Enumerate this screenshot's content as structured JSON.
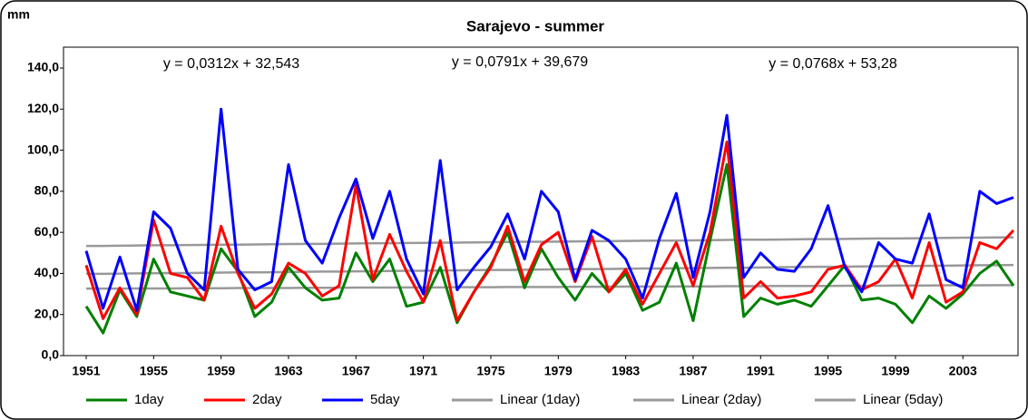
{
  "chart_data": {
    "type": "line",
    "title": "Sarajevo - summer",
    "y_label": "mm",
    "annotations": [
      "y = 0,0312x + 32,543",
      "y = 0,0791x + 39,679",
      "y = 0,0768x + 53,28"
    ],
    "categories": [
      "1951",
      null,
      null,
      null,
      "1955",
      null,
      null,
      null,
      "1959",
      null,
      null,
      null,
      "1963",
      null,
      null,
      null,
      "1967",
      null,
      null,
      null,
      "1971",
      null,
      null,
      null,
      "1975",
      null,
      null,
      null,
      "1979",
      null,
      null,
      null,
      "1983",
      null,
      null,
      null,
      "1987",
      null,
      null,
      null,
      "1991",
      null,
      null,
      null,
      "1995",
      null,
      null,
      null,
      "1999",
      null,
      null,
      null,
      "2003",
      null,
      null,
      null
    ],
    "ylim": [
      0,
      140
    ],
    "yticks": [
      {
        "value": 0,
        "label": "0,0"
      },
      {
        "value": 20,
        "label": "20,0"
      },
      {
        "value": 40,
        "label": "40,0"
      },
      {
        "value": 60,
        "label": "60,0"
      },
      {
        "value": 80,
        "label": "80,0"
      },
      {
        "value": 100,
        "label": "100,0"
      },
      {
        "value": 120,
        "label": "120,0"
      },
      {
        "value": 140,
        "label": "140,0"
      }
    ],
    "grid": false,
    "legend": "bottom",
    "series": [
      {
        "name": "1day",
        "color": "#008000",
        "values": [
          24,
          11,
          32,
          19,
          47,
          31,
          29,
          27,
          52,
          41,
          19,
          26,
          43,
          33,
          27,
          28,
          50,
          36,
          47,
          24,
          26,
          43,
          16,
          31,
          44,
          60,
          33,
          52,
          38,
          27,
          40,
          31,
          40,
          22,
          26,
          45,
          17,
          56,
          93,
          19,
          28,
          25,
          27,
          24,
          34,
          44,
          27,
          28,
          25,
          16,
          29,
          23,
          30,
          40,
          46,
          34
        ]
      },
      {
        "name": "2day",
        "color": "#ff0000",
        "values": [
          44,
          18,
          33,
          20,
          66,
          40,
          38,
          27,
          63,
          40,
          23,
          30,
          45,
          40,
          29,
          34,
          83,
          37,
          59,
          41,
          26,
          56,
          17,
          31,
          43,
          63,
          36,
          54,
          60,
          36,
          58,
          31,
          42,
          25,
          40,
          55,
          34,
          60,
          104,
          28,
          36,
          28,
          29,
          31,
          42,
          44,
          32,
          36,
          47,
          28,
          55,
          26,
          31,
          55,
          52,
          61
        ]
      },
      {
        "name": "5day",
        "color": "#0000ff",
        "values": [
          51,
          23,
          48,
          22,
          70,
          62,
          40,
          32,
          120,
          42,
          32,
          36,
          93,
          56,
          45,
          67,
          86,
          57,
          80,
          47,
          30,
          95,
          32,
          43,
          53,
          69,
          47,
          80,
          70,
          37,
          61,
          56,
          47,
          28,
          57,
          79,
          38,
          70,
          117,
          38,
          50,
          42,
          41,
          52,
          73,
          43,
          31,
          55,
          47,
          45,
          69,
          37,
          33,
          80,
          74,
          77
        ]
      },
      {
        "name": "Linear (1day)",
        "color": "#999999",
        "values": [
          32.6,
          32.6,
          32.6,
          32.7,
          32.7,
          32.7,
          32.8,
          32.8,
          32.8,
          32.9,
          32.9,
          32.9,
          32.9,
          33.0,
          33.0,
          33.0,
          33.1,
          33.1,
          33.1,
          33.2,
          33.2,
          33.2,
          33.3,
          33.3,
          33.3,
          33.4,
          33.4,
          33.4,
          33.4,
          33.5,
          33.5,
          33.5,
          33.6,
          33.6,
          33.6,
          33.7,
          33.7,
          33.7,
          33.8,
          33.8,
          33.8,
          33.9,
          33.9,
          33.9,
          33.9,
          34.0,
          34.0,
          34.0,
          34.1,
          34.1,
          34.1,
          34.2,
          34.2,
          34.2,
          34.3,
          34.3
        ]
      },
      {
        "name": "Linear (2day)",
        "color": "#999999",
        "values": [
          39.8,
          39.8,
          39.9,
          40.0,
          40.1,
          40.2,
          40.2,
          40.3,
          40.4,
          40.5,
          40.5,
          40.6,
          40.7,
          40.8,
          40.9,
          40.9,
          41.0,
          41.1,
          41.2,
          41.3,
          41.3,
          41.4,
          41.5,
          41.6,
          41.7,
          41.7,
          41.8,
          41.9,
          42.0,
          42.1,
          42.1,
          42.2,
          42.3,
          42.4,
          42.4,
          42.5,
          42.6,
          42.7,
          42.8,
          42.8,
          42.9,
          43.0,
          43.1,
          43.2,
          43.2,
          43.3,
          43.4,
          43.5,
          43.6,
          43.6,
          43.7,
          43.8,
          43.9,
          44.0,
          44.0,
          44.1
        ]
      },
      {
        "name": "Linear (5day)",
        "color": "#999999",
        "values": [
          53.4,
          53.4,
          53.5,
          53.6,
          53.7,
          53.7,
          53.8,
          53.9,
          54.0,
          54.0,
          54.1,
          54.2,
          54.3,
          54.4,
          54.4,
          54.5,
          54.6,
          54.7,
          54.7,
          54.8,
          54.9,
          55.0,
          55.0,
          55.1,
          55.2,
          55.3,
          55.4,
          55.4,
          55.5,
          55.6,
          55.7,
          55.7,
          55.8,
          55.9,
          56.0,
          56.0,
          56.1,
          56.2,
          56.3,
          56.4,
          56.4,
          56.5,
          56.6,
          56.7,
          56.7,
          56.8,
          56.9,
          57.0,
          57.0,
          57.1,
          57.2,
          57.3,
          57.4,
          57.4,
          57.5,
          57.6
        ]
      }
    ]
  }
}
